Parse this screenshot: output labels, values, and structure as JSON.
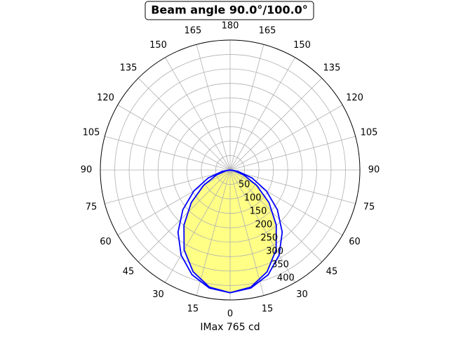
{
  "chart_data": {
    "type": "polar",
    "title": "Beam angle 90.0°/100.0°",
    "xlabel": "IMax 765 cd",
    "theta": [
      -90,
      -80,
      -70,
      -60,
      -50,
      -40,
      -30,
      -20,
      -10,
      0,
      10,
      20,
      30,
      40,
      50,
      60,
      70,
      80,
      90
    ],
    "series": [
      {
        "color": "#0000ff",
        "values": [
          0,
          28,
          81,
          145,
          214,
          281,
          340,
          386,
          415,
          425,
          415,
          386,
          340,
          281,
          214,
          145,
          81,
          28,
          0
        ]
      },
      {
        "color": "#0000ff",
        "fill": "#ffff80",
        "values": [
          0,
          13,
          50,
          106,
          176,
          249,
          319,
          375,
          412,
          425,
          412,
          375,
          319,
          249,
          176,
          106,
          50,
          13,
          0
        ]
      }
    ],
    "rlim": [
      0,
      450
    ],
    "rticks": [
      50,
      100,
      150,
      200,
      250,
      300,
      350,
      400
    ],
    "thetaticks": [
      0,
      15,
      30,
      45,
      60,
      75,
      90,
      105,
      120,
      135,
      150,
      165,
      180
    ],
    "grid": true
  }
}
